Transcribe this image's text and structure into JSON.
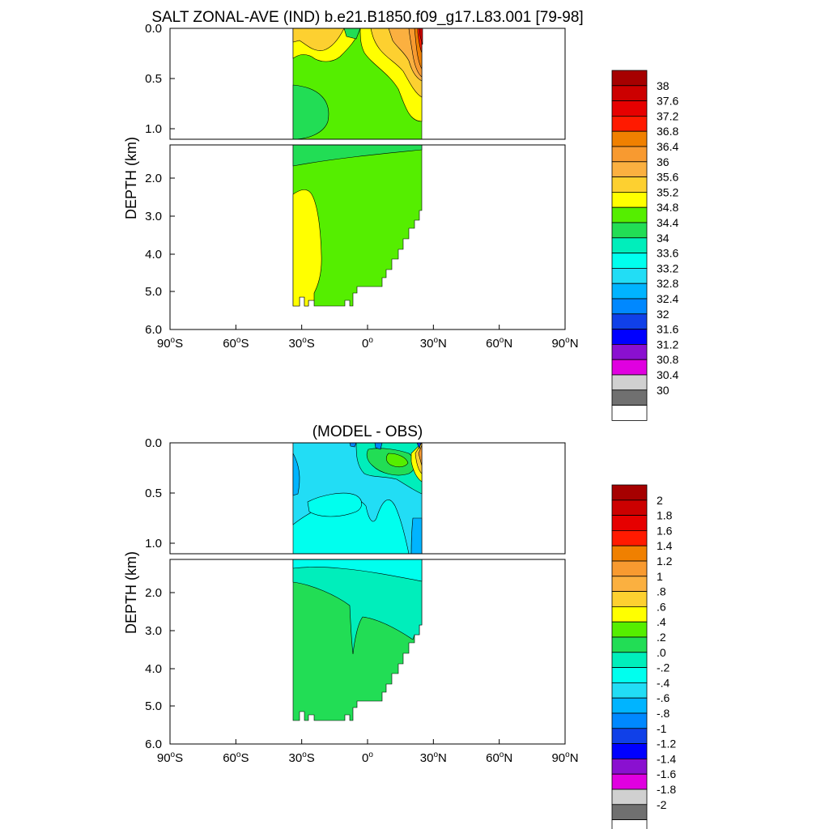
{
  "chart_data": [
    {
      "type": "heatmap",
      "title": "SALT ZONAL-AVE (IND) b.e21.B1850.f09_g17.L83.001 [79-98]",
      "ylabel": "DEPTH (km)",
      "x_ticks": [
        {
          "v": -90,
          "n": "90",
          "h": "S"
        },
        {
          "v": -60,
          "n": "60",
          "h": "S"
        },
        {
          "v": -30,
          "n": "30",
          "h": "S"
        },
        {
          "v": 0,
          "n": "0",
          "h": ""
        },
        {
          "v": 30,
          "n": "30",
          "h": "N"
        },
        {
          "v": 60,
          "n": "60",
          "h": "N"
        },
        {
          "v": 90,
          "n": "90",
          "h": "N"
        }
      ],
      "upper_y_ticks": [
        "0.0",
        "0.5",
        "1.0"
      ],
      "lower_y_ticks": [
        "2.0",
        "3.0",
        "4.0",
        "5.0",
        "6.0"
      ],
      "colorbar": {
        "labels": [
          "38",
          "37.6",
          "37.2",
          "36.8",
          "36.4",
          "36",
          "35.6",
          "35.2",
          "34.8",
          "34.4",
          "34",
          "33.6",
          "33.2",
          "32.8",
          "32.4",
          "32",
          "31.6",
          "31.2",
          "30.8",
          "30.4",
          "30"
        ],
        "colors": [
          "#a60000",
          "#cc0000",
          "#e60000",
          "#ff1a00",
          "#f08000",
          "#f89a30",
          "#fbb040",
          "#fdd030",
          "#ffff00",
          "#55ee00",
          "#22dd55",
          "#00eebb",
          "#00ffee",
          "#22ddf5",
          "#00b4ff",
          "#0088ff",
          "#1040e8",
          "#0000ff",
          "#8a10d0",
          "#e000e0",
          "#d0d0d0",
          "#707070",
          "#ffffff"
        ]
      }
    },
    {
      "type": "heatmap",
      "title": "(MODEL - OBS)",
      "ylabel": "DEPTH (km)",
      "x_ticks": [
        {
          "v": -90,
          "n": "90",
          "h": "S"
        },
        {
          "v": -60,
          "n": "60",
          "h": "S"
        },
        {
          "v": -30,
          "n": "30",
          "h": "S"
        },
        {
          "v": 0,
          "n": "0",
          "h": ""
        },
        {
          "v": 30,
          "n": "30",
          "h": "N"
        },
        {
          "v": 60,
          "n": "60",
          "h": "N"
        },
        {
          "v": 90,
          "n": "90",
          "h": "N"
        }
      ],
      "upper_y_ticks": [
        "0.0",
        "0.5",
        "1.0"
      ],
      "lower_y_ticks": [
        "2.0",
        "3.0",
        "4.0",
        "5.0",
        "6.0"
      ],
      "colorbar": {
        "labels": [
          "2",
          "1.8",
          "1.6",
          "1.4",
          "1.2",
          "1",
          ".8",
          ".6",
          ".4",
          ".2",
          ".0",
          "-.2",
          "-.4",
          "-.6",
          "-.8",
          "-1",
          "-1.2",
          "-1.4",
          "-1.6",
          "-1.8",
          "-2"
        ],
        "colors": [
          "#a60000",
          "#cc0000",
          "#e60000",
          "#ff1a00",
          "#f08000",
          "#f89a30",
          "#fbb040",
          "#fdd030",
          "#ffff00",
          "#55ee00",
          "#22dd55",
          "#00eebb",
          "#00ffee",
          "#22ddf5",
          "#00b4ff",
          "#0088ff",
          "#1040e8",
          "#0000ff",
          "#8a10d0",
          "#e000e0",
          "#d0d0d0",
          "#707070",
          "#ffffff"
        ]
      }
    }
  ]
}
